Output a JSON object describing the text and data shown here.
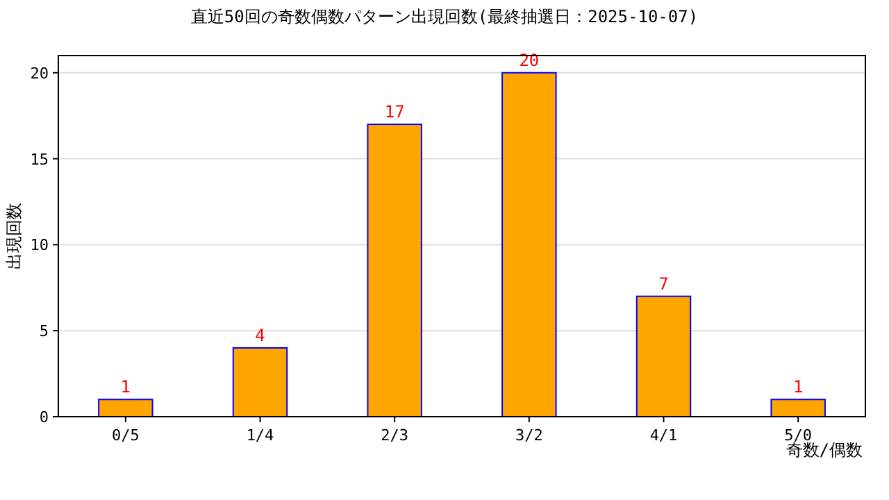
{
  "chart_data": {
    "type": "bar",
    "title": "直近50回の奇数偶数パターン出現回数(最終抽選日：2025-10-07)",
    "xlabel": "奇数/偶数",
    "ylabel": "出現回数",
    "categories": [
      "0/5",
      "1/4",
      "2/3",
      "3/2",
      "4/1",
      "5/0"
    ],
    "series": [
      {
        "color": "#ffa500",
        "values": [
          1,
          4,
          17,
          20,
          7,
          1
        ]
      }
    ],
    "ylim": [
      0,
      21
    ],
    "yticks": [
      0,
      5,
      10,
      15,
      20
    ],
    "grid": "y",
    "data_labels": true
  }
}
